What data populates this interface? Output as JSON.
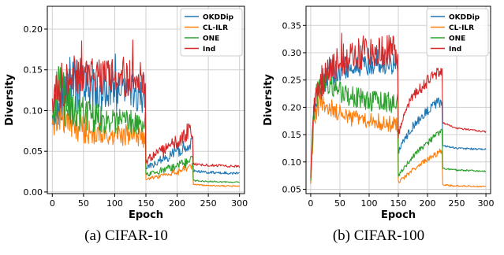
{
  "chart_data": [
    {
      "type": "line",
      "caption": "(a) CIFAR-10",
      "xlabel": "Epoch",
      "ylabel": "Diversity",
      "xlim": [
        -8,
        308
      ],
      "ylim": [
        -0.002,
        0.228
      ],
      "xticks": [
        0,
        50,
        100,
        150,
        200,
        250,
        300
      ],
      "yticks": [
        0.0,
        0.05,
        0.1,
        0.15,
        0.2
      ],
      "ytick_labels": [
        "0.00",
        "0.05",
        "0.10",
        "0.15",
        "0.20"
      ],
      "grid": true,
      "legend_position": "top-right",
      "series": [
        {
          "name": "OKDDip",
          "color": "#1f77b4",
          "x": [
            0,
            10,
            20,
            35,
            60,
            100,
            140,
            149,
            150,
            175,
            200,
            215,
            225,
            226,
            250,
            300
          ],
          "y": [
            0.09,
            0.12,
            0.126,
            0.13,
            0.128,
            0.125,
            0.122,
            0.12,
            0.03,
            0.04,
            0.05,
            0.058,
            0.061,
            0.026,
            0.024,
            0.023
          ],
          "noise": [
            0.008,
            0.025,
            0.025,
            0.022,
            0.018,
            0.016,
            0.015,
            0.015,
            0.002,
            0.004,
            0.005,
            0.005,
            0.005,
            0.001,
            0.001,
            0.001
          ]
        },
        {
          "name": "CL-ILR",
          "color": "#ff7f0e",
          "x": [
            0,
            10,
            20,
            40,
            60,
            100,
            140,
            149,
            150,
            175,
            200,
            215,
            225,
            226,
            250,
            300
          ],
          "y": [
            0.08,
            0.098,
            0.092,
            0.08,
            0.075,
            0.07,
            0.068,
            0.066,
            0.016,
            0.02,
            0.025,
            0.029,
            0.031,
            0.009,
            0.008,
            0.007
          ],
          "noise": [
            0.008,
            0.016,
            0.014,
            0.012,
            0.01,
            0.008,
            0.008,
            0.008,
            0.001,
            0.002,
            0.003,
            0.003,
            0.003,
            0.0005,
            0.0005,
            0.0005
          ]
        },
        {
          "name": "ONE",
          "color": "#2ca02c",
          "x": [
            0,
            10,
            20,
            35,
            60,
            100,
            140,
            149,
            150,
            175,
            200,
            215,
            225,
            226,
            250,
            300
          ],
          "y": [
            0.09,
            0.12,
            0.115,
            0.1,
            0.092,
            0.087,
            0.085,
            0.085,
            0.022,
            0.027,
            0.032,
            0.036,
            0.039,
            0.014,
            0.013,
            0.012
          ],
          "noise": [
            0.01,
            0.03,
            0.025,
            0.015,
            0.012,
            0.01,
            0.01,
            0.01,
            0.002,
            0.003,
            0.003,
            0.004,
            0.004,
            0.0005,
            0.0005,
            0.0005
          ]
        },
        {
          "name": "Ind",
          "color": "#d62728",
          "x": [
            0,
            10,
            20,
            35,
            60,
            100,
            140,
            149,
            150,
            175,
            200,
            215,
            225,
            226,
            250,
            300
          ],
          "y": [
            0.11,
            0.13,
            0.135,
            0.14,
            0.142,
            0.14,
            0.142,
            0.14,
            0.038,
            0.05,
            0.062,
            0.072,
            0.078,
            0.034,
            0.033,
            0.031
          ],
          "noise": [
            0.01,
            0.02,
            0.02,
            0.018,
            0.015,
            0.015,
            0.015,
            0.015,
            0.003,
            0.005,
            0.006,
            0.007,
            0.007,
            0.001,
            0.001,
            0.001
          ]
        }
      ]
    },
    {
      "type": "line",
      "caption": "(b) CIFAR-100",
      "xlabel": "Epoch",
      "ylabel": "Diversity",
      "xlim": [
        -8,
        308
      ],
      "ylim": [
        0.042,
        0.385
      ],
      "xticks": [
        0,
        50,
        100,
        150,
        200,
        250,
        300
      ],
      "yticks": [
        0.05,
        0.1,
        0.15,
        0.2,
        0.25,
        0.3,
        0.35
      ],
      "ytick_labels": [
        "0.05",
        "0.10",
        "0.15",
        "0.20",
        "0.25",
        "0.30",
        "0.35"
      ],
      "grid": true,
      "legend_position": "top-right",
      "series": [
        {
          "name": "OKDDip",
          "color": "#1f77b4",
          "x": [
            0,
            5,
            15,
            30,
            60,
            100,
            140,
            149,
            150,
            160,
            175,
            200,
            215,
            225,
            226,
            250,
            300
          ],
          "y": [
            0.065,
            0.18,
            0.23,
            0.26,
            0.272,
            0.278,
            0.28,
            0.279,
            0.118,
            0.14,
            0.165,
            0.195,
            0.208,
            0.21,
            0.13,
            0.125,
            0.123
          ],
          "noise": [
            0.003,
            0.015,
            0.015,
            0.014,
            0.012,
            0.012,
            0.012,
            0.012,
            0.003,
            0.004,
            0.005,
            0.006,
            0.006,
            0.006,
            0.001,
            0.001,
            0.001
          ]
        },
        {
          "name": "CL-ILR",
          "color": "#ff7f0e",
          "x": [
            0,
            5,
            15,
            30,
            60,
            100,
            140,
            149,
            150,
            175,
            200,
            215,
            225,
            226,
            250,
            300
          ],
          "y": [
            0.065,
            0.17,
            0.215,
            0.2,
            0.182,
            0.175,
            0.17,
            0.17,
            0.063,
            0.085,
            0.105,
            0.115,
            0.12,
            0.058,
            0.056,
            0.055
          ],
          "noise": [
            0.003,
            0.015,
            0.014,
            0.012,
            0.01,
            0.01,
            0.01,
            0.01,
            0.002,
            0.003,
            0.003,
            0.004,
            0.004,
            0.001,
            0.001,
            0.0005
          ]
        },
        {
          "name": "ONE",
          "color": "#2ca02c",
          "x": [
            0,
            5,
            15,
            30,
            60,
            100,
            140,
            149,
            150,
            175,
            200,
            215,
            225,
            226,
            250,
            300
          ],
          "y": [
            0.07,
            0.19,
            0.25,
            0.24,
            0.222,
            0.212,
            0.208,
            0.207,
            0.075,
            0.11,
            0.135,
            0.15,
            0.155,
            0.088,
            0.085,
            0.083
          ],
          "noise": [
            0.003,
            0.016,
            0.016,
            0.014,
            0.012,
            0.012,
            0.012,
            0.012,
            0.002,
            0.003,
            0.004,
            0.004,
            0.004,
            0.001,
            0.001,
            0.001
          ]
        },
        {
          "name": "Ind",
          "color": "#d62728",
          "x": [
            0,
            5,
            15,
            30,
            60,
            100,
            140,
            149,
            150,
            160,
            175,
            200,
            215,
            225,
            226,
            250,
            300
          ],
          "y": [
            0.075,
            0.2,
            0.24,
            0.27,
            0.29,
            0.3,
            0.305,
            0.305,
            0.15,
            0.19,
            0.22,
            0.248,
            0.26,
            0.265,
            0.172,
            0.162,
            0.155
          ],
          "noise": [
            0.003,
            0.015,
            0.02,
            0.018,
            0.018,
            0.018,
            0.018,
            0.018,
            0.004,
            0.005,
            0.006,
            0.007,
            0.007,
            0.007,
            0.001,
            0.001,
            0.001
          ]
        }
      ]
    }
  ]
}
